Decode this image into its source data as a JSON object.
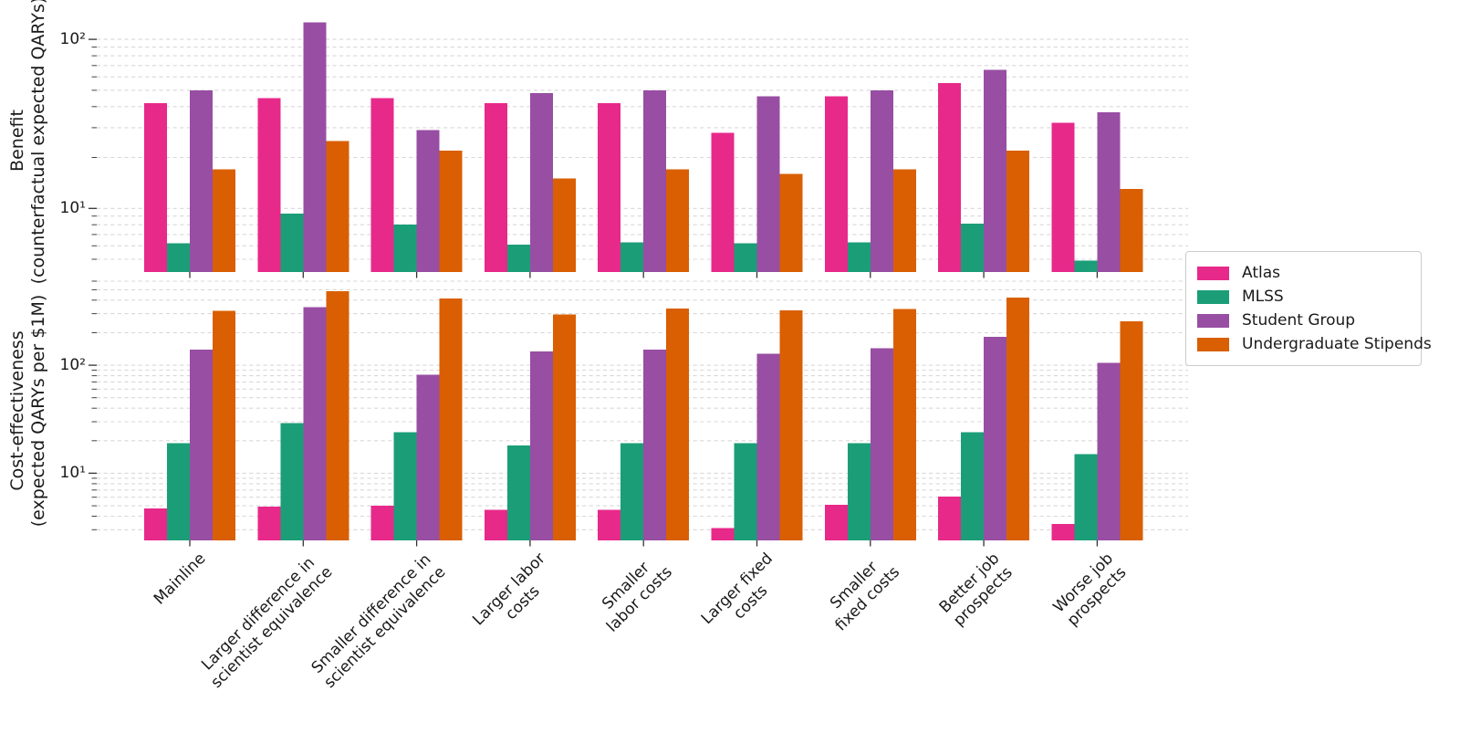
{
  "page": {
    "background": "#ffffff"
  },
  "colors": {
    "atlas": "#e7298a",
    "mlss": "#1b9e77",
    "student_group": "#984ea3",
    "undergraduate_stipends": "#d95f02",
    "gridline": "#d8d8d8"
  },
  "legend": {
    "items": [
      {
        "label": "Atlas",
        "color": "#e7298a"
      },
      {
        "label": "MLSS",
        "color": "#1b9e77"
      },
      {
        "label": "Student Group",
        "color": "#984ea3"
      },
      {
        "label": "Undergraduate Stipends",
        "color": "#d95f02"
      }
    ]
  },
  "categories": [
    "Mainline",
    "Larger difference in scientist equivalence",
    "Smaller difference in scientist equivalence",
    "Larger labor costs",
    "Smaller labor costs",
    "Larger fixed costs",
    "Smaller fixed costs",
    "Better job prospects",
    "Worse job prospects"
  ],
  "xtick_label_lines": [
    [
      "Mainline"
    ],
    [
      "Larger difference in",
      "scientist equivalence"
    ],
    [
      "Smaller difference in",
      "scientist equivalence"
    ],
    [
      "Larger labor",
      "costs"
    ],
    [
      "Smaller",
      "labor costs"
    ],
    [
      "Larger fixed",
      "costs"
    ],
    [
      "Smaller",
      "fixed costs"
    ],
    [
      "Better job",
      "prospects"
    ],
    [
      "Worse job",
      "prospects"
    ]
  ],
  "chart_data": [
    {
      "id": "benefit",
      "type": "bar",
      "yscale": "log",
      "grid": "horizontal dashed",
      "legend_position": "right",
      "ylabel_lines": [
        "Benefit",
        "(counterfactual expected QARYs)"
      ],
      "ylim": [
        4.2,
        151
      ],
      "ytick_labels": [
        {
          "value": 10,
          "label": "10¹"
        },
        {
          "value": 100,
          "label": "10²"
        }
      ],
      "categories": [
        "Mainline",
        "Larger difference in scientist equivalence",
        "Smaller difference in scientist equivalence",
        "Larger labor costs",
        "Smaller labor costs",
        "Larger fixed costs",
        "Smaller fixed costs",
        "Better job prospects",
        "Worse job prospects"
      ],
      "series": [
        {
          "name": "Atlas",
          "color": "#e7298a",
          "values": [
            42,
            45,
            45,
            42,
            42,
            28,
            46,
            55,
            32
          ]
        },
        {
          "name": "MLSS",
          "color": "#1b9e77",
          "values": [
            6.2,
            9.3,
            8.0,
            6.1,
            6.3,
            6.2,
            6.3,
            8.1,
            4.9
          ]
        },
        {
          "name": "Student Group",
          "color": "#984ea3",
          "values": [
            50,
            126,
            29,
            48,
            50,
            46,
            50,
            66,
            37
          ]
        },
        {
          "name": "Undergraduate Stipends",
          "color": "#d95f02",
          "values": [
            17,
            25,
            22,
            15,
            17,
            16,
            17,
            22,
            13
          ]
        }
      ]
    },
    {
      "id": "cost-effectiveness",
      "type": "bar",
      "yscale": "log",
      "grid": "horizontal dashed",
      "legend_position": "right",
      "ylabel_lines": [
        "Cost-effectiveness",
        "(expected QARYs per $1M)"
      ],
      "ylim": [
        2.39,
        600
      ],
      "ytick_labels": [
        {
          "value": 10,
          "label": "10¹"
        },
        {
          "value": 100,
          "label": "10²"
        }
      ],
      "categories": [
        "Mainline",
        "Larger difference in scientist equivalence",
        "Smaller difference in scientist equivalence",
        "Larger labor costs",
        "Smaller labor costs",
        "Larger fixed costs",
        "Smaller fixed costs",
        "Better job prospects",
        "Worse job prospects"
      ],
      "series": [
        {
          "name": "Atlas",
          "color": "#e7298a",
          "values": [
            4.7,
            4.9,
            5.0,
            4.6,
            4.6,
            3.1,
            5.1,
            6.1,
            3.4
          ]
        },
        {
          "name": "MLSS",
          "color": "#1b9e77",
          "values": [
            19,
            29,
            24,
            18,
            19,
            19,
            19,
            24,
            15
          ]
        },
        {
          "name": "Student Group",
          "color": "#984ea3",
          "values": [
            140,
            345,
            82,
            134,
            140,
            128,
            143,
            184,
            105
          ]
        },
        {
          "name": "Undergraduate Stipends",
          "color": "#d95f02",
          "values": [
            320,
            485,
            415,
            296,
            336,
            321,
            332,
            422,
            256
          ]
        }
      ]
    }
  ]
}
